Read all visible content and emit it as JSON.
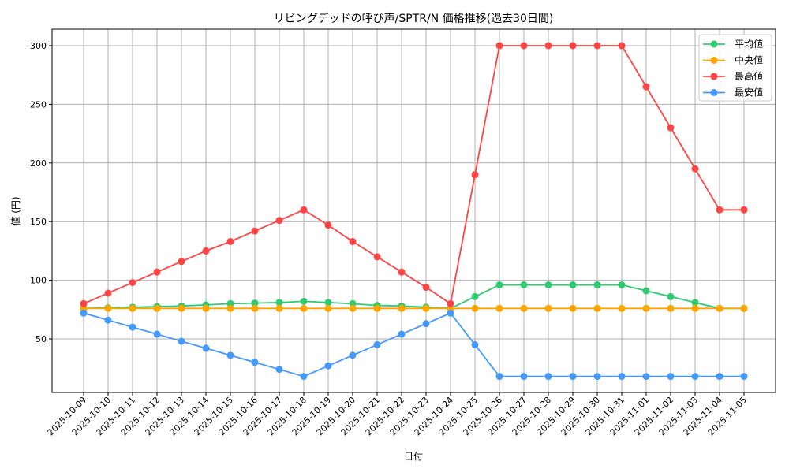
{
  "chart_data": {
    "type": "line",
    "title": "リビングデッドの呼び声/SPTR/N 価格推移(過去30日間)",
    "xlabel": "日付",
    "ylabel": "値 (円)",
    "ylim": [
      4.3,
      314.1
    ],
    "yticks": [
      50,
      100,
      150,
      200,
      250,
      300
    ],
    "grid": true,
    "legend_position": "top-right",
    "x": [
      "2025-10-09",
      "2025-10-10",
      "2025-10-11",
      "2025-10-12",
      "2025-10-13",
      "2025-10-14",
      "2025-10-15",
      "2025-10-16",
      "2025-10-17",
      "2025-10-18",
      "2025-10-19",
      "2025-10-20",
      "2025-10-21",
      "2025-10-22",
      "2025-10-23",
      "2025-10-24",
      "2025-10-25",
      "2025-10-26",
      "2025-10-27",
      "2025-10-28",
      "2025-10-29",
      "2025-10-30",
      "2025-10-31",
      "2025-11-01",
      "2025-11-02",
      "2025-11-03",
      "2025-11-04",
      "2025-11-05"
    ],
    "series": [
      {
        "name": "平均値",
        "color": "#2ecc71",
        "values": [
          76,
          76.5,
          77,
          77.5,
          78,
          79,
          80,
          80.5,
          81,
          82,
          81,
          80,
          78.5,
          78,
          77,
          76,
          86,
          96,
          96,
          96,
          96,
          96,
          96,
          91,
          86,
          81,
          76,
          76
        ]
      },
      {
        "name": "中央値",
        "color": "#ffa500",
        "values": [
          76,
          76,
          76,
          76,
          76,
          76,
          76,
          76,
          76,
          76,
          76,
          76,
          76,
          76,
          76,
          76,
          76,
          76,
          76,
          76,
          76,
          76,
          76,
          76,
          76,
          76,
          76,
          76
        ]
      },
      {
        "name": "最高値",
        "color": "#ff4444",
        "values": [
          80,
          89,
          98,
          107,
          116,
          125,
          133,
          142,
          151,
          160,
          147,
          133,
          120,
          107,
          94,
          80,
          190,
          300,
          300,
          300,
          300,
          300,
          300,
          265,
          230,
          195,
          160,
          160
        ]
      },
      {
        "name": "最安値",
        "color": "#4499ff",
        "values": [
          72,
          66,
          60,
          54,
          48,
          42,
          36,
          30,
          24,
          18,
          27,
          36,
          45,
          54,
          63,
          72,
          45,
          18,
          18,
          18,
          18,
          18,
          18,
          18,
          18,
          18,
          18,
          18
        ]
      }
    ]
  }
}
